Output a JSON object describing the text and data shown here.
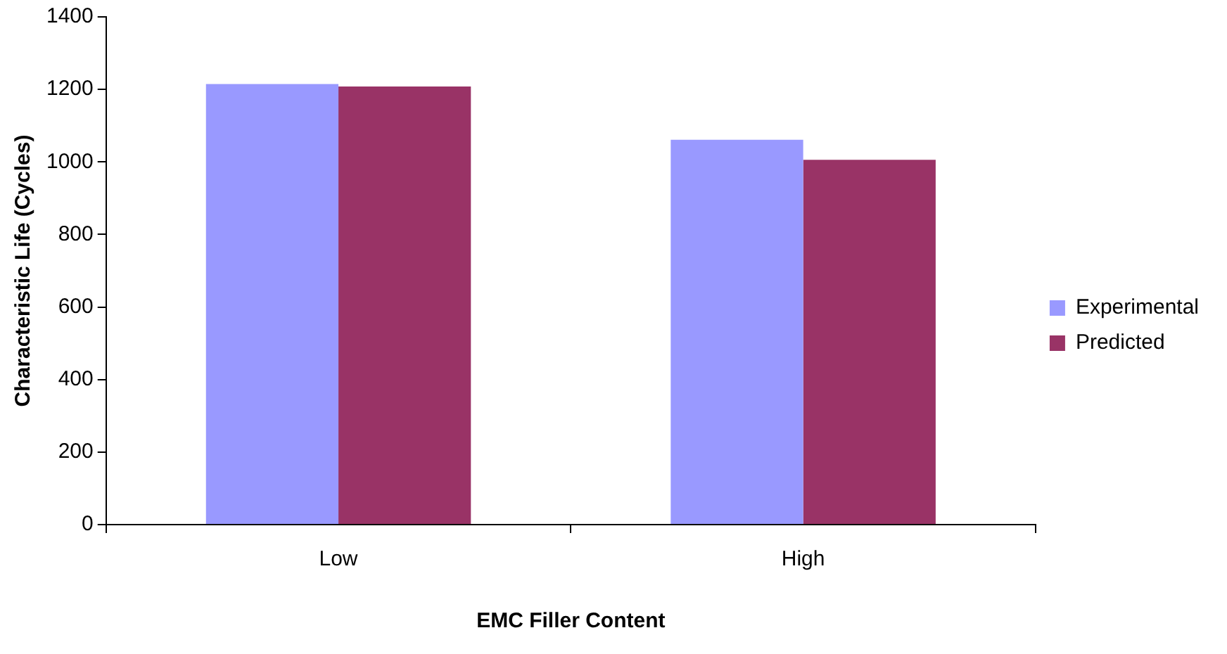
{
  "chart_data": {
    "type": "bar",
    "xlabel": "EMC Filler Content",
    "ylabel": "Characteristic Life (Cycles)",
    "categories": [
      "Low",
      "High"
    ],
    "series": [
      {
        "name": "Experimental",
        "color": "#9999ff",
        "values": [
          1215,
          1061
        ]
      },
      {
        "name": "Predicted",
        "color": "#993366",
        "values": [
          1208,
          1006
        ]
      }
    ],
    "ylim": [
      0,
      1400
    ],
    "yticks": [
      0,
      200,
      400,
      600,
      800,
      1000,
      1200,
      1400
    ],
    "grid": false,
    "legend": "right"
  }
}
